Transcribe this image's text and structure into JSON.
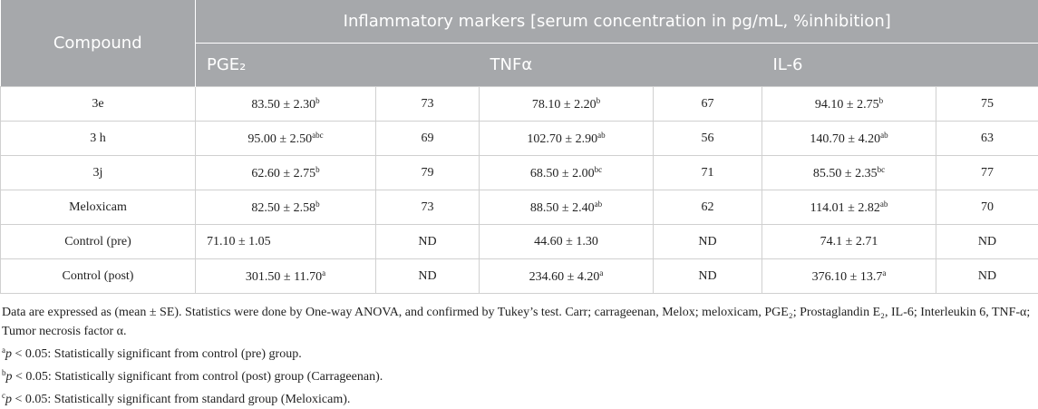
{
  "table": {
    "header": {
      "compound": "Compound",
      "group": "Inflammatory markers [serum concentration in pg/mL, %inhibition]",
      "markers": [
        "PGE₂",
        "TNFα",
        "IL-6"
      ]
    },
    "rows": [
      {
        "compound": "3e",
        "cells": [
          {
            "text": "83.50 ± 2.30",
            "sup": "b"
          },
          {
            "text": "73"
          },
          {
            "text": "78.10 ± 2.20",
            "sup": "b"
          },
          {
            "text": "67"
          },
          {
            "text": "94.10 ± 2.75",
            "sup": "b"
          },
          {
            "text": "75"
          }
        ]
      },
      {
        "compound": "3 h",
        "cells": [
          {
            "text": "95.00 ± 2.50",
            "sup": "abc"
          },
          {
            "text": "69"
          },
          {
            "text": "102.70 ± 2.90",
            "sup": "ab"
          },
          {
            "text": "56"
          },
          {
            "text": "140.70 ± 4.20",
            "sup": "ab"
          },
          {
            "text": "63"
          }
        ]
      },
      {
        "compound": "3j",
        "cells": [
          {
            "text": "62.60 ± 2.75",
            "sup": "b"
          },
          {
            "text": "79"
          },
          {
            "text": "68.50 ± 2.00",
            "sup": "bc"
          },
          {
            "text": "71"
          },
          {
            "text": "85.50 ± 2.35",
            "sup": "bc"
          },
          {
            "text": "77"
          }
        ]
      },
      {
        "compound": "Meloxicam",
        "cells": [
          {
            "text": "82.50 ± 2.58",
            "sup": "b"
          },
          {
            "text": "73"
          },
          {
            "text": "88.50 ± 2.40",
            "sup": "ab"
          },
          {
            "text": "62"
          },
          {
            "text": "114.01 ± 2.82",
            "sup": "ab"
          },
          {
            "text": "70"
          }
        ]
      },
      {
        "compound": "Control (pre)",
        "cells": [
          {
            "text": "71.10 ± 1.05"
          },
          {
            "text": "ND"
          },
          {
            "text": "44.60 ± 1.30"
          },
          {
            "text": "ND"
          },
          {
            "text": "74.1 ± 2.71"
          },
          {
            "text": "ND"
          }
        ]
      },
      {
        "compound": "Control (post)",
        "cells": [
          {
            "text": "301.50 ± 11.70",
            "sup": "a"
          },
          {
            "text": "ND"
          },
          {
            "text": "234.60 ± 4.20",
            "sup": "a"
          },
          {
            "text": "ND"
          },
          {
            "text": "376.10 ± 13.7",
            "sup": "a"
          },
          {
            "text": "ND"
          }
        ]
      }
    ]
  },
  "footnotes": {
    "main": "Data are expressed as (mean ± SE). Statistics were done by One-way ANOVA, and confirmed by Tukey’s test. Carr; carrageenan, Melox; meloxicam, PGE₂; Prostaglandin E₂, IL-6; Interleukin 6, TNF-α; Tumor necrosis factor α.",
    "items": [
      {
        "mark": "a",
        "p": "p",
        "text": " < 0.05: Statistically significant from control (pre) group."
      },
      {
        "mark": "b",
        "p": "p",
        "text": " < 0.05: Statistically significant from control (post) group (Carrageenan)."
      },
      {
        "mark": "c",
        "p": "p",
        "text": " < 0.05: Statistically significant from standard group (Meloxicam)."
      }
    ]
  }
}
